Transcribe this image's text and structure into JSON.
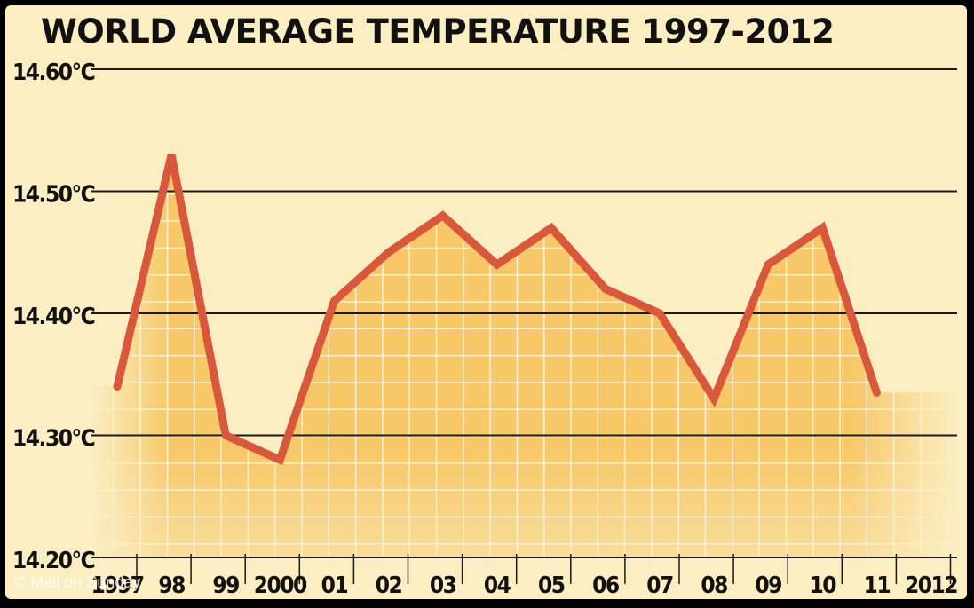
{
  "chart_data": {
    "type": "line",
    "title": "WORLD AVERAGE TEMPERATURE 1997-2012",
    "xlabel": "",
    "ylabel": "",
    "x_tick_labels": [
      "1997",
      "98",
      "99",
      "2000",
      "01",
      "02",
      "03",
      "04",
      "05",
      "06",
      "07",
      "08",
      "09",
      "10",
      "11",
      "2012"
    ],
    "y_tick_labels": [
      "14.20°C",
      "14.30°C",
      "14.40°C",
      "14.50°C",
      "14.60°C"
    ],
    "y_ticks": [
      14.2,
      14.3,
      14.4,
      14.5,
      14.6
    ],
    "ylim": [
      14.2,
      14.6
    ],
    "series": [
      {
        "x": [
          "1997",
          "98",
          "99",
          "2000",
          "01",
          "02",
          "03",
          "04",
          "05",
          "06",
          "07",
          "08",
          "09",
          "10",
          "11"
        ],
        "values": [
          14.34,
          14.53,
          14.3,
          14.28,
          14.41,
          14.45,
          14.48,
          14.44,
          14.47,
          14.42,
          14.4,
          14.33,
          14.44,
          14.47,
          14.335
        ]
      }
    ],
    "grid": "horizontal",
    "colors": {
      "background": "#fbeec2",
      "area_fill": "#f6c868",
      "line": "#d9573a",
      "gridline": "#1a1a1a",
      "text": "#111111"
    }
  },
  "credit": "© Mail on Sunday"
}
